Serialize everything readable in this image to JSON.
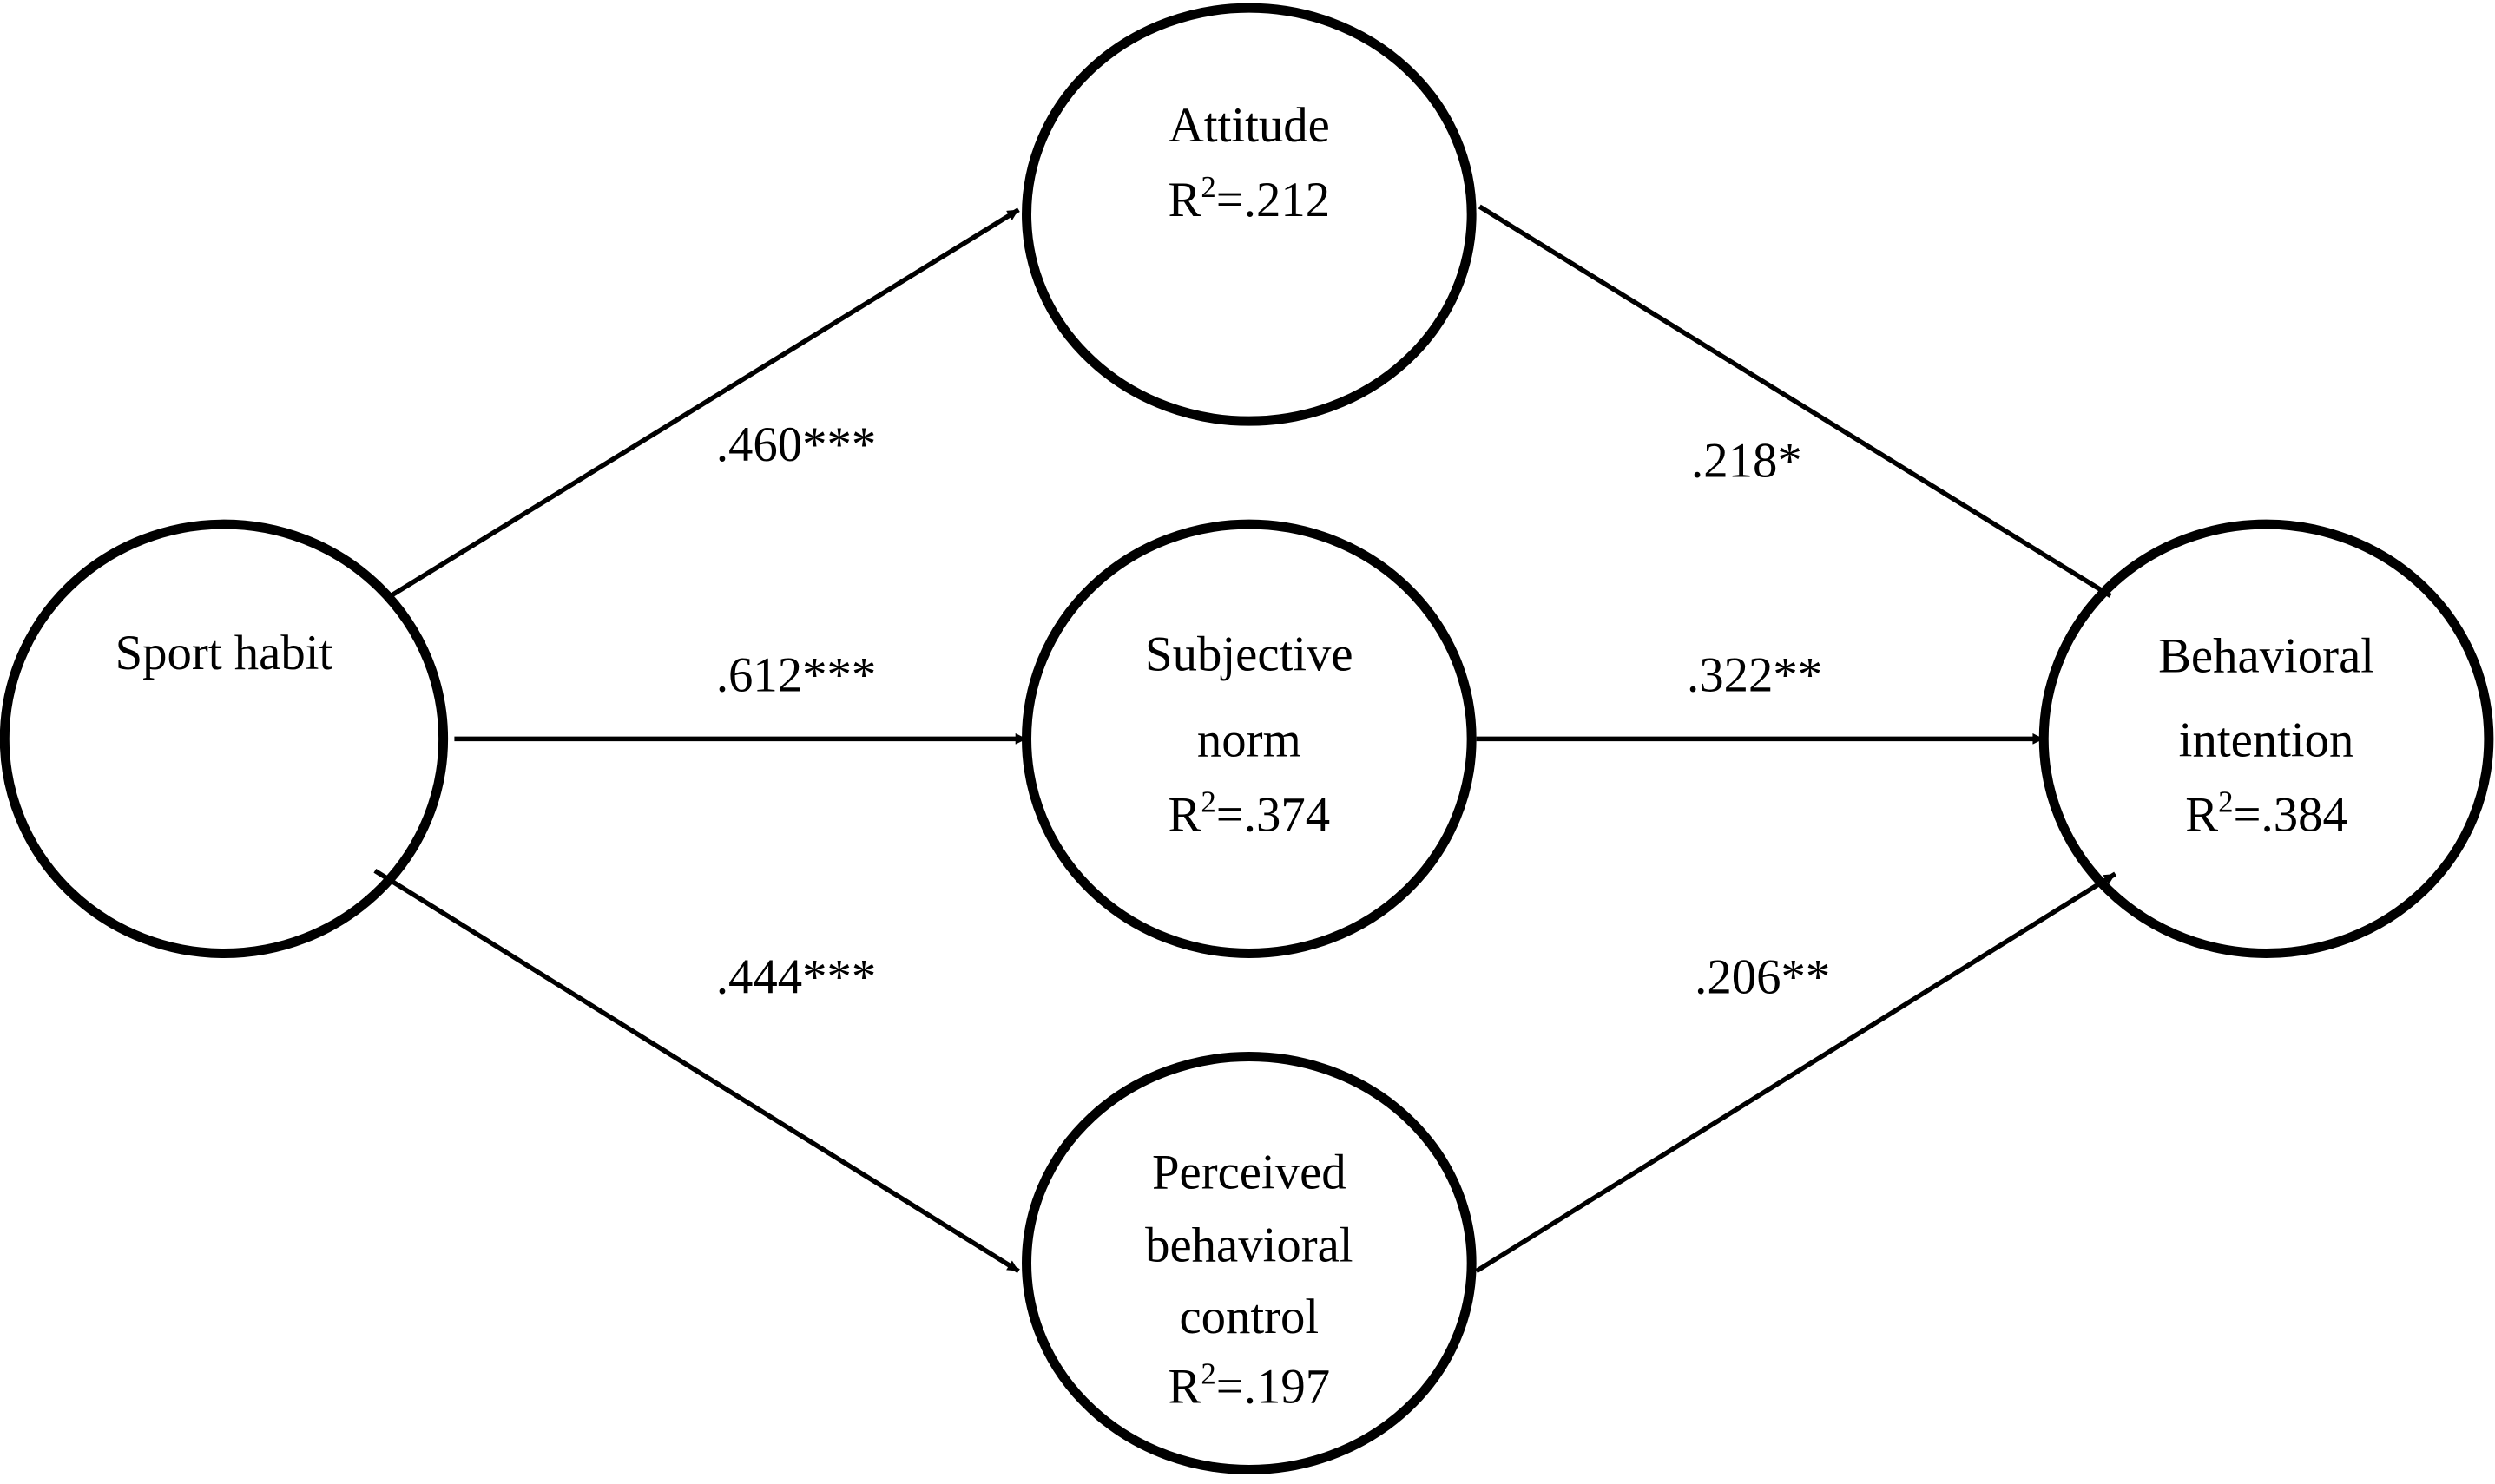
{
  "nodes": [
    {
      "lines": [
        "Sport habit"
      ]
    },
    {
      "lines": [
        "Attitude"
      ],
      "r2": {
        "symbol": "R",
        "exponent": "2",
        "relation": "=",
        "value": ".212"
      }
    },
    {
      "lines": [
        "Subjective",
        "norm"
      ],
      "r2": {
        "symbol": "R",
        "exponent": "2",
        "relation": "=",
        "value": ".374"
      }
    },
    {
      "lines": [
        "Perceived",
        "behavioral",
        "control"
      ],
      "r2": {
        "symbol": "R",
        "exponent": "2",
        "relation": "=",
        "value": ".197"
      }
    },
    {
      "lines": [
        "Behavioral",
        "intention"
      ],
      "r2": {
        "symbol": "R",
        "exponent": "2",
        "relation": "=",
        "value": ".384"
      }
    }
  ],
  "edges": [
    {
      "from": 0,
      "to": 1,
      "label": ".460***"
    },
    {
      "from": 0,
      "to": 2,
      "label": ".612***"
    },
    {
      "from": 0,
      "to": 3,
      "label": ".444***"
    },
    {
      "from": 1,
      "to": 4,
      "label": ".218*"
    },
    {
      "from": 2,
      "to": 4,
      "label": ".322**"
    },
    {
      "from": 3,
      "to": 4,
      "label": ".206**"
    }
  ]
}
